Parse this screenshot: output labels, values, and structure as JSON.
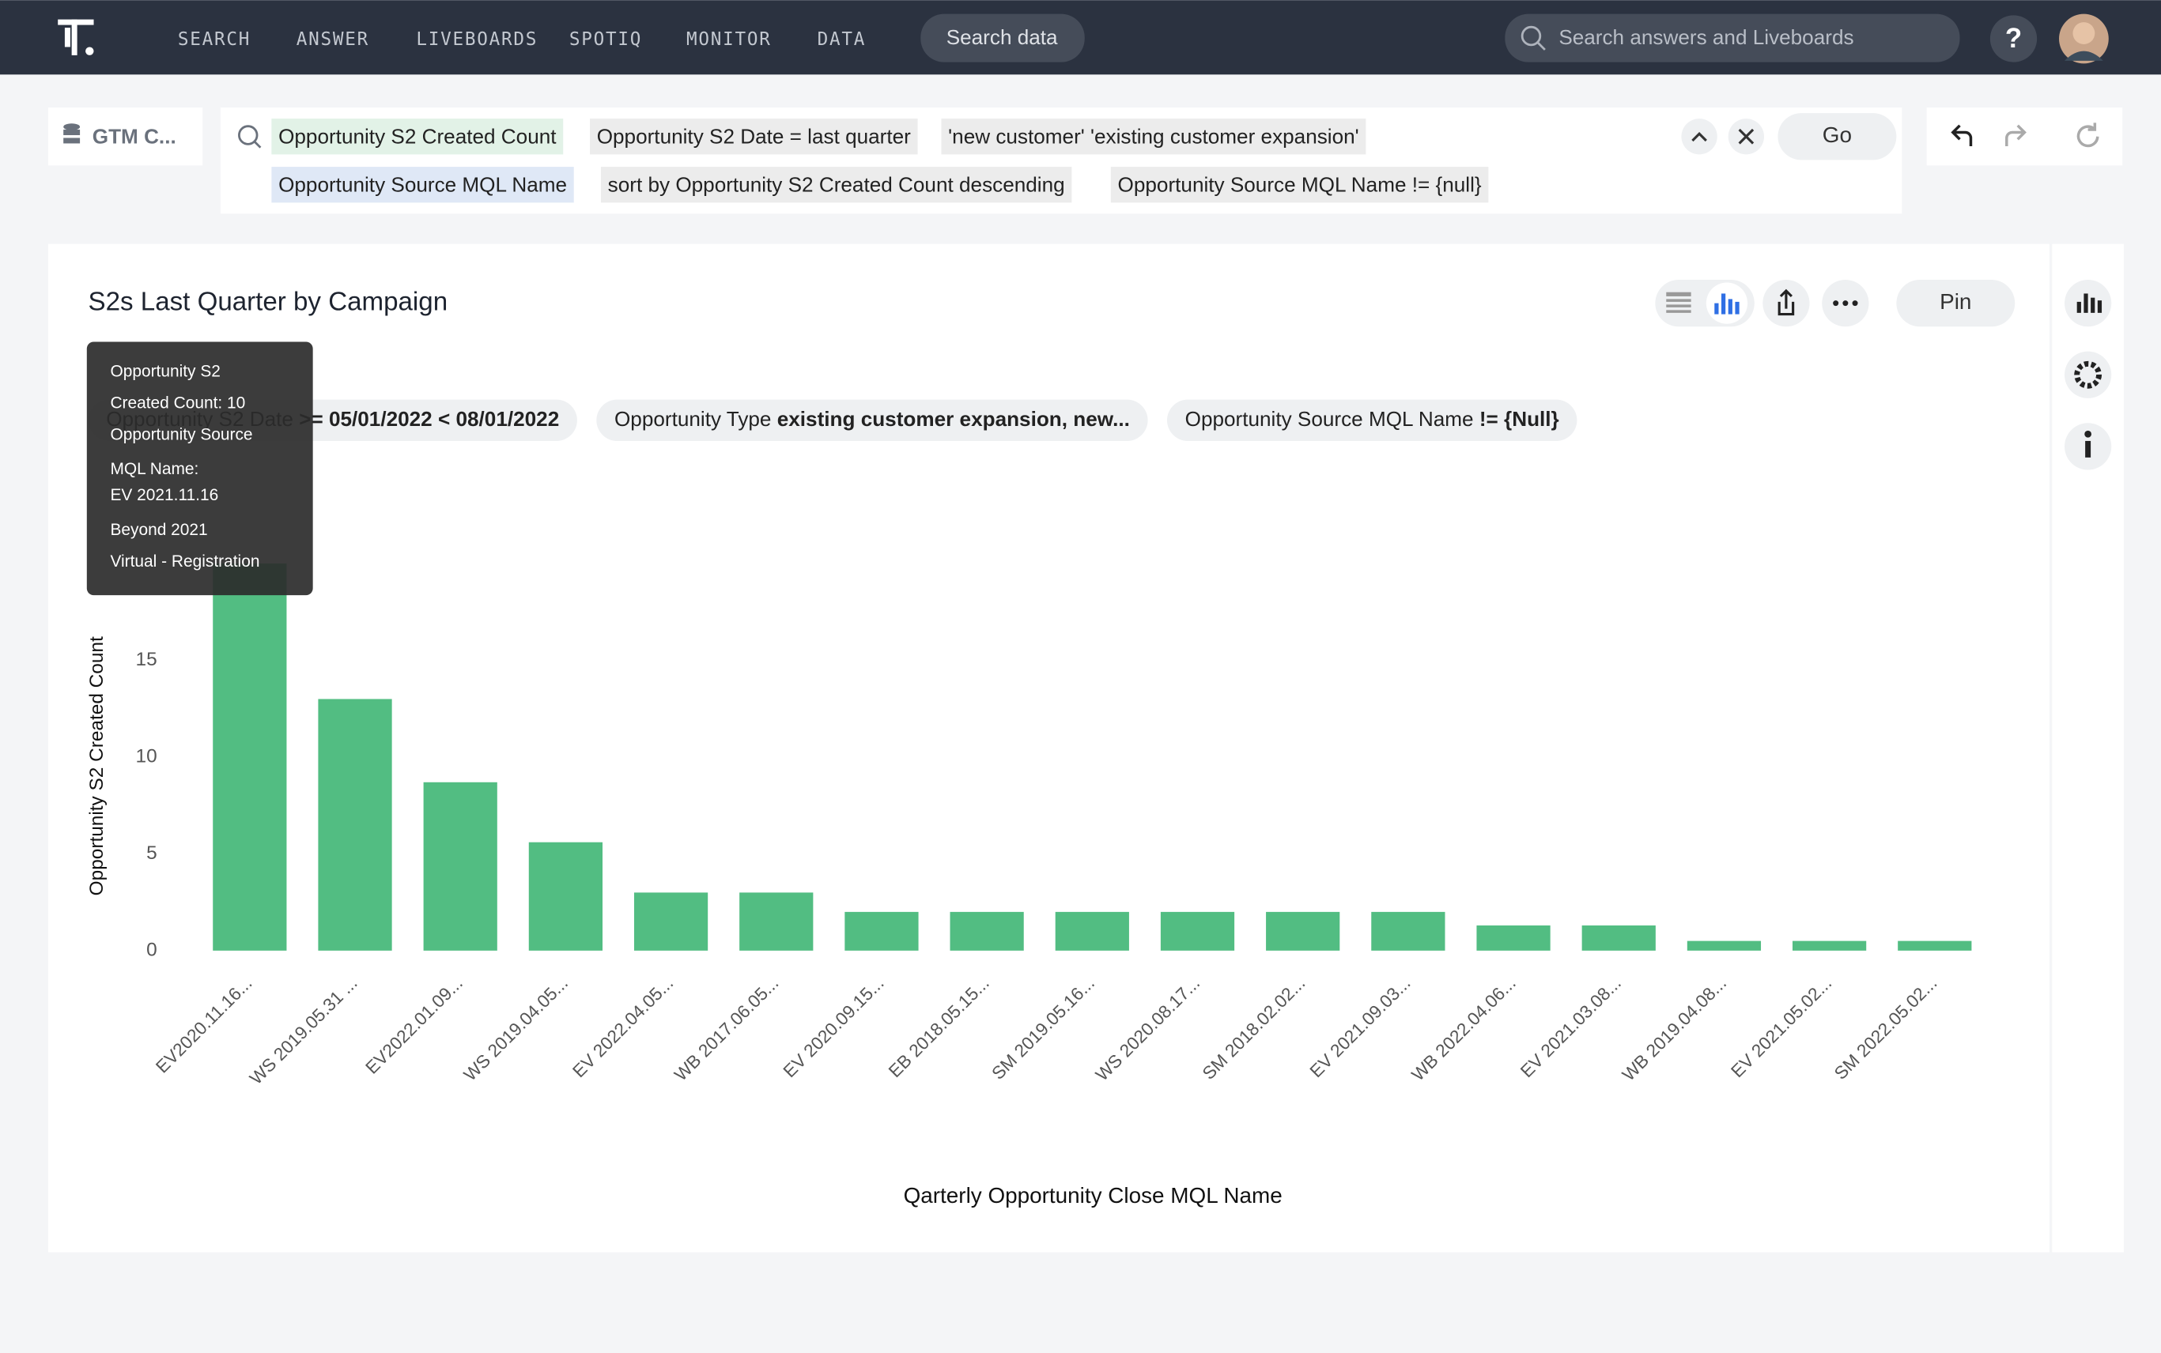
{
  "nav": {
    "items": [
      "SEARCH",
      "ANSWER",
      "LIVEBOARDS",
      "SPOTIQ",
      "MONITOR",
      "DATA"
    ],
    "search_data": "Search data",
    "search_placeholder": "Search answers and Liveboards",
    "help": "?"
  },
  "source": "GTM C...",
  "search": {
    "tokens": [
      "Opportunity S2 Created Count",
      "Opportunity S2 Date = last quarter",
      "'new customer' 'existing customer expansion'",
      "Opportunity Source MQL Name",
      "sort by Opportunity S2 Created Count descending",
      "Opportunity Source MQL Name != {null}"
    ],
    "go": "Go"
  },
  "pin": "Pin",
  "filters": [
    {
      "label": "Opportunity S2 Date",
      "value": ">= 05/01/2022 < 08/01/2022"
    },
    {
      "label": "Opportunity Type",
      "value": "existing customer expansion, new..."
    },
    {
      "label": "Opportunity Source MQL Name",
      "value": "!= {Null}"
    }
  ],
  "tooltip": [
    "Opportunity S2",
    "Created Count: 10",
    "Opportunity Source",
    "MQL Name:",
    "EV 2021.11.16",
    "Beyond 2021",
    "Virtual - Registration"
  ],
  "chart_data": {
    "type": "bar",
    "title": "S2s Last Quarter by Campaign",
    "x_label": "Qarterly Opportunity Close MQL Name",
    "y_label": "Opportunity S2 Created Count",
    "categories": [
      "EV2020.11.16...",
      "WS 2019.05.31 ...",
      "EV2022.01.09...",
      "WS 2019.04.05...",
      "EV 2022.04.05...",
      "WB 2017.06.05...",
      "EV 2020.09.15...",
      "EB 2018.05.15...",
      "SM 2019.05.16...",
      "WS 2020.08.17...",
      "SM 2018.02.02...",
      "EV 2021.09.03...",
      "WB 2022.04.06...",
      "EV 2021.03.08...",
      "WB 2019.04.08...",
      "EV 2021.05.02...",
      "SM 2022.05.02..."
    ],
    "values": [
      20,
      13,
      8.7,
      5.6,
      3,
      3,
      2,
      2,
      2,
      2,
      2,
      2,
      1.3,
      1.3,
      0.5,
      0.5,
      0.5
    ],
    "color": "#52bd82",
    "ylim": [
      0,
      20
    ],
    "yticks": [
      0,
      5,
      10,
      15
    ]
  }
}
